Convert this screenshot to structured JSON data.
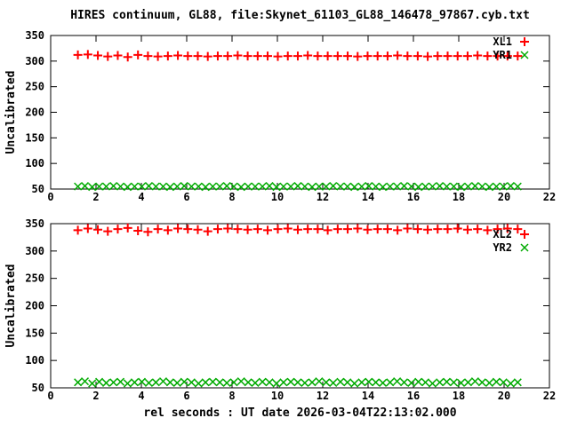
{
  "title": "HIRES continuum, GL88, file:Skynet_61103_GL88_146478_97867.cyb.txt",
  "xlabel": "rel seconds : UT date 2026-03-04T22:13:02.000",
  "colors": {
    "axis": "#000000",
    "red": "#ff0000",
    "green": "#00aa00",
    "background": "#ffffff"
  },
  "chart_data": [
    {
      "type": "scatter",
      "panel": "top",
      "ylabel": "Uncalibrated",
      "xlim": [
        0,
        22
      ],
      "ylim": [
        50,
        350
      ],
      "xticks": [
        0,
        2,
        4,
        6,
        8,
        10,
        12,
        14,
        16,
        18,
        20,
        22
      ],
      "yticks": [
        50,
        100,
        150,
        200,
        250,
        300,
        350
      ],
      "legend_position": "top-right",
      "series": [
        {
          "name": "XL1",
          "marker": "plus",
          "color": "#ff0000",
          "x": [
            1.2,
            1.64,
            2.08,
            2.52,
            2.96,
            3.4,
            3.85,
            4.29,
            4.73,
            5.17,
            5.61,
            6.05,
            6.49,
            6.93,
            7.37,
            7.81,
            8.25,
            8.69,
            9.13,
            9.57,
            10.02,
            10.46,
            10.9,
            11.34,
            11.78,
            12.22,
            12.66,
            13.1,
            13.54,
            13.98,
            14.42,
            14.86,
            15.3,
            15.74,
            16.19,
            16.63,
            17.07,
            17.51,
            17.95,
            18.39,
            18.83,
            19.27,
            19.71,
            20.15,
            20.6
          ],
          "y": [
            312,
            313,
            311,
            309,
            311,
            308,
            312,
            310,
            309,
            310,
            311,
            310,
            310,
            309,
            310,
            310,
            311,
            310,
            310,
            310,
            309,
            310,
            310,
            311,
            310,
            310,
            310,
            310,
            309,
            310,
            310,
            310,
            311,
            310,
            310,
            309,
            310,
            310,
            310,
            310,
            311,
            310,
            310,
            310,
            310
          ]
        },
        {
          "name": "YR1",
          "marker": "cross",
          "color": "#00aa00",
          "x": [
            1.2,
            1.51,
            1.83,
            2.14,
            2.45,
            2.77,
            3.08,
            3.39,
            3.7,
            4.02,
            4.33,
            4.64,
            4.96,
            5.27,
            5.58,
            5.89,
            6.21,
            6.52,
            6.83,
            7.15,
            7.46,
            7.77,
            8.08,
            8.4,
            8.71,
            9.02,
            9.34,
            9.65,
            9.96,
            10.27,
            10.59,
            10.9,
            11.21,
            11.53,
            11.84,
            12.15,
            12.46,
            12.78,
            13.09,
            13.4,
            13.72,
            14.03,
            14.34,
            14.65,
            14.97,
            15.28,
            15.59,
            15.91,
            16.22,
            16.53,
            16.84,
            17.16,
            17.47,
            17.78,
            18.1,
            18.41,
            18.72,
            19.03,
            19.35,
            19.66,
            19.97,
            20.29,
            20.6
          ],
          "y": [
            55,
            56,
            54,
            55,
            55,
            56,
            55,
            54,
            55,
            55,
            56,
            55,
            55,
            54,
            55,
            56,
            55,
            55,
            54,
            55,
            55,
            56,
            55,
            54,
            55,
            55,
            55,
            56,
            54,
            55,
            55,
            56,
            55,
            54,
            55,
            55,
            56,
            55,
            55,
            54,
            55,
            56,
            55,
            54,
            55,
            55,
            56,
            55,
            54,
            55,
            55,
            56,
            55,
            55,
            54,
            55,
            56,
            55,
            54,
            55,
            55,
            56,
            55
          ]
        }
      ]
    },
    {
      "type": "scatter",
      "panel": "bottom",
      "ylabel": "Uncalibrated",
      "xlim": [
        0,
        22
      ],
      "ylim": [
        50,
        350
      ],
      "xticks": [
        0,
        2,
        4,
        6,
        8,
        10,
        12,
        14,
        16,
        18,
        20,
        22
      ],
      "yticks": [
        50,
        100,
        150,
        200,
        250,
        300,
        350
      ],
      "legend_position": "top-right",
      "series": [
        {
          "name": "XL2",
          "marker": "plus",
          "color": "#ff0000",
          "x": [
            1.2,
            1.64,
            2.08,
            2.52,
            2.96,
            3.4,
            3.85,
            4.29,
            4.73,
            5.17,
            5.61,
            6.05,
            6.49,
            6.93,
            7.37,
            7.81,
            8.25,
            8.69,
            9.13,
            9.57,
            10.02,
            10.46,
            10.9,
            11.34,
            11.78,
            12.22,
            12.66,
            13.1,
            13.54,
            13.98,
            14.42,
            14.86,
            15.3,
            15.74,
            16.19,
            16.63,
            17.07,
            17.51,
            17.95,
            18.39,
            18.83,
            19.27,
            19.71,
            20.15,
            20.6
          ],
          "y": [
            338,
            341,
            339,
            336,
            340,
            342,
            337,
            335,
            340,
            338,
            341,
            340,
            339,
            336,
            340,
            341,
            340,
            339,
            340,
            338,
            340,
            341,
            339,
            340,
            340,
            338,
            340,
            340,
            341,
            339,
            340,
            340,
            338,
            341,
            340,
            339,
            340,
            340,
            341,
            339,
            340,
            338,
            340,
            341,
            340
          ]
        },
        {
          "name": "YR2",
          "marker": "cross",
          "color": "#00aa00",
          "x": [
            1.2,
            1.51,
            1.83,
            2.14,
            2.45,
            2.77,
            3.08,
            3.39,
            3.7,
            4.02,
            4.33,
            4.64,
            4.96,
            5.27,
            5.58,
            5.89,
            6.21,
            6.52,
            6.83,
            7.15,
            7.46,
            7.77,
            8.08,
            8.4,
            8.71,
            9.02,
            9.34,
            9.65,
            9.96,
            10.27,
            10.59,
            10.9,
            11.21,
            11.53,
            11.84,
            12.15,
            12.46,
            12.78,
            13.09,
            13.4,
            13.72,
            14.03,
            14.34,
            14.65,
            14.97,
            15.28,
            15.59,
            15.91,
            16.22,
            16.53,
            16.84,
            17.16,
            17.47,
            17.78,
            18.1,
            18.41,
            18.72,
            19.03,
            19.35,
            19.66,
            19.97,
            20.29,
            20.6
          ],
          "y": [
            60,
            62,
            58,
            61,
            59,
            60,
            61,
            58,
            60,
            61,
            59,
            60,
            62,
            60,
            59,
            61,
            60,
            58,
            60,
            61,
            60,
            59,
            60,
            62,
            60,
            59,
            61,
            60,
            58,
            60,
            61,
            60,
            59,
            60,
            62,
            60,
            59,
            61,
            60,
            58,
            60,
            61,
            60,
            59,
            60,
            62,
            60,
            59,
            61,
            60,
            58,
            60,
            61,
            60,
            59,
            60,
            62,
            60,
            59,
            61,
            60,
            58,
            60
          ]
        }
      ]
    }
  ]
}
